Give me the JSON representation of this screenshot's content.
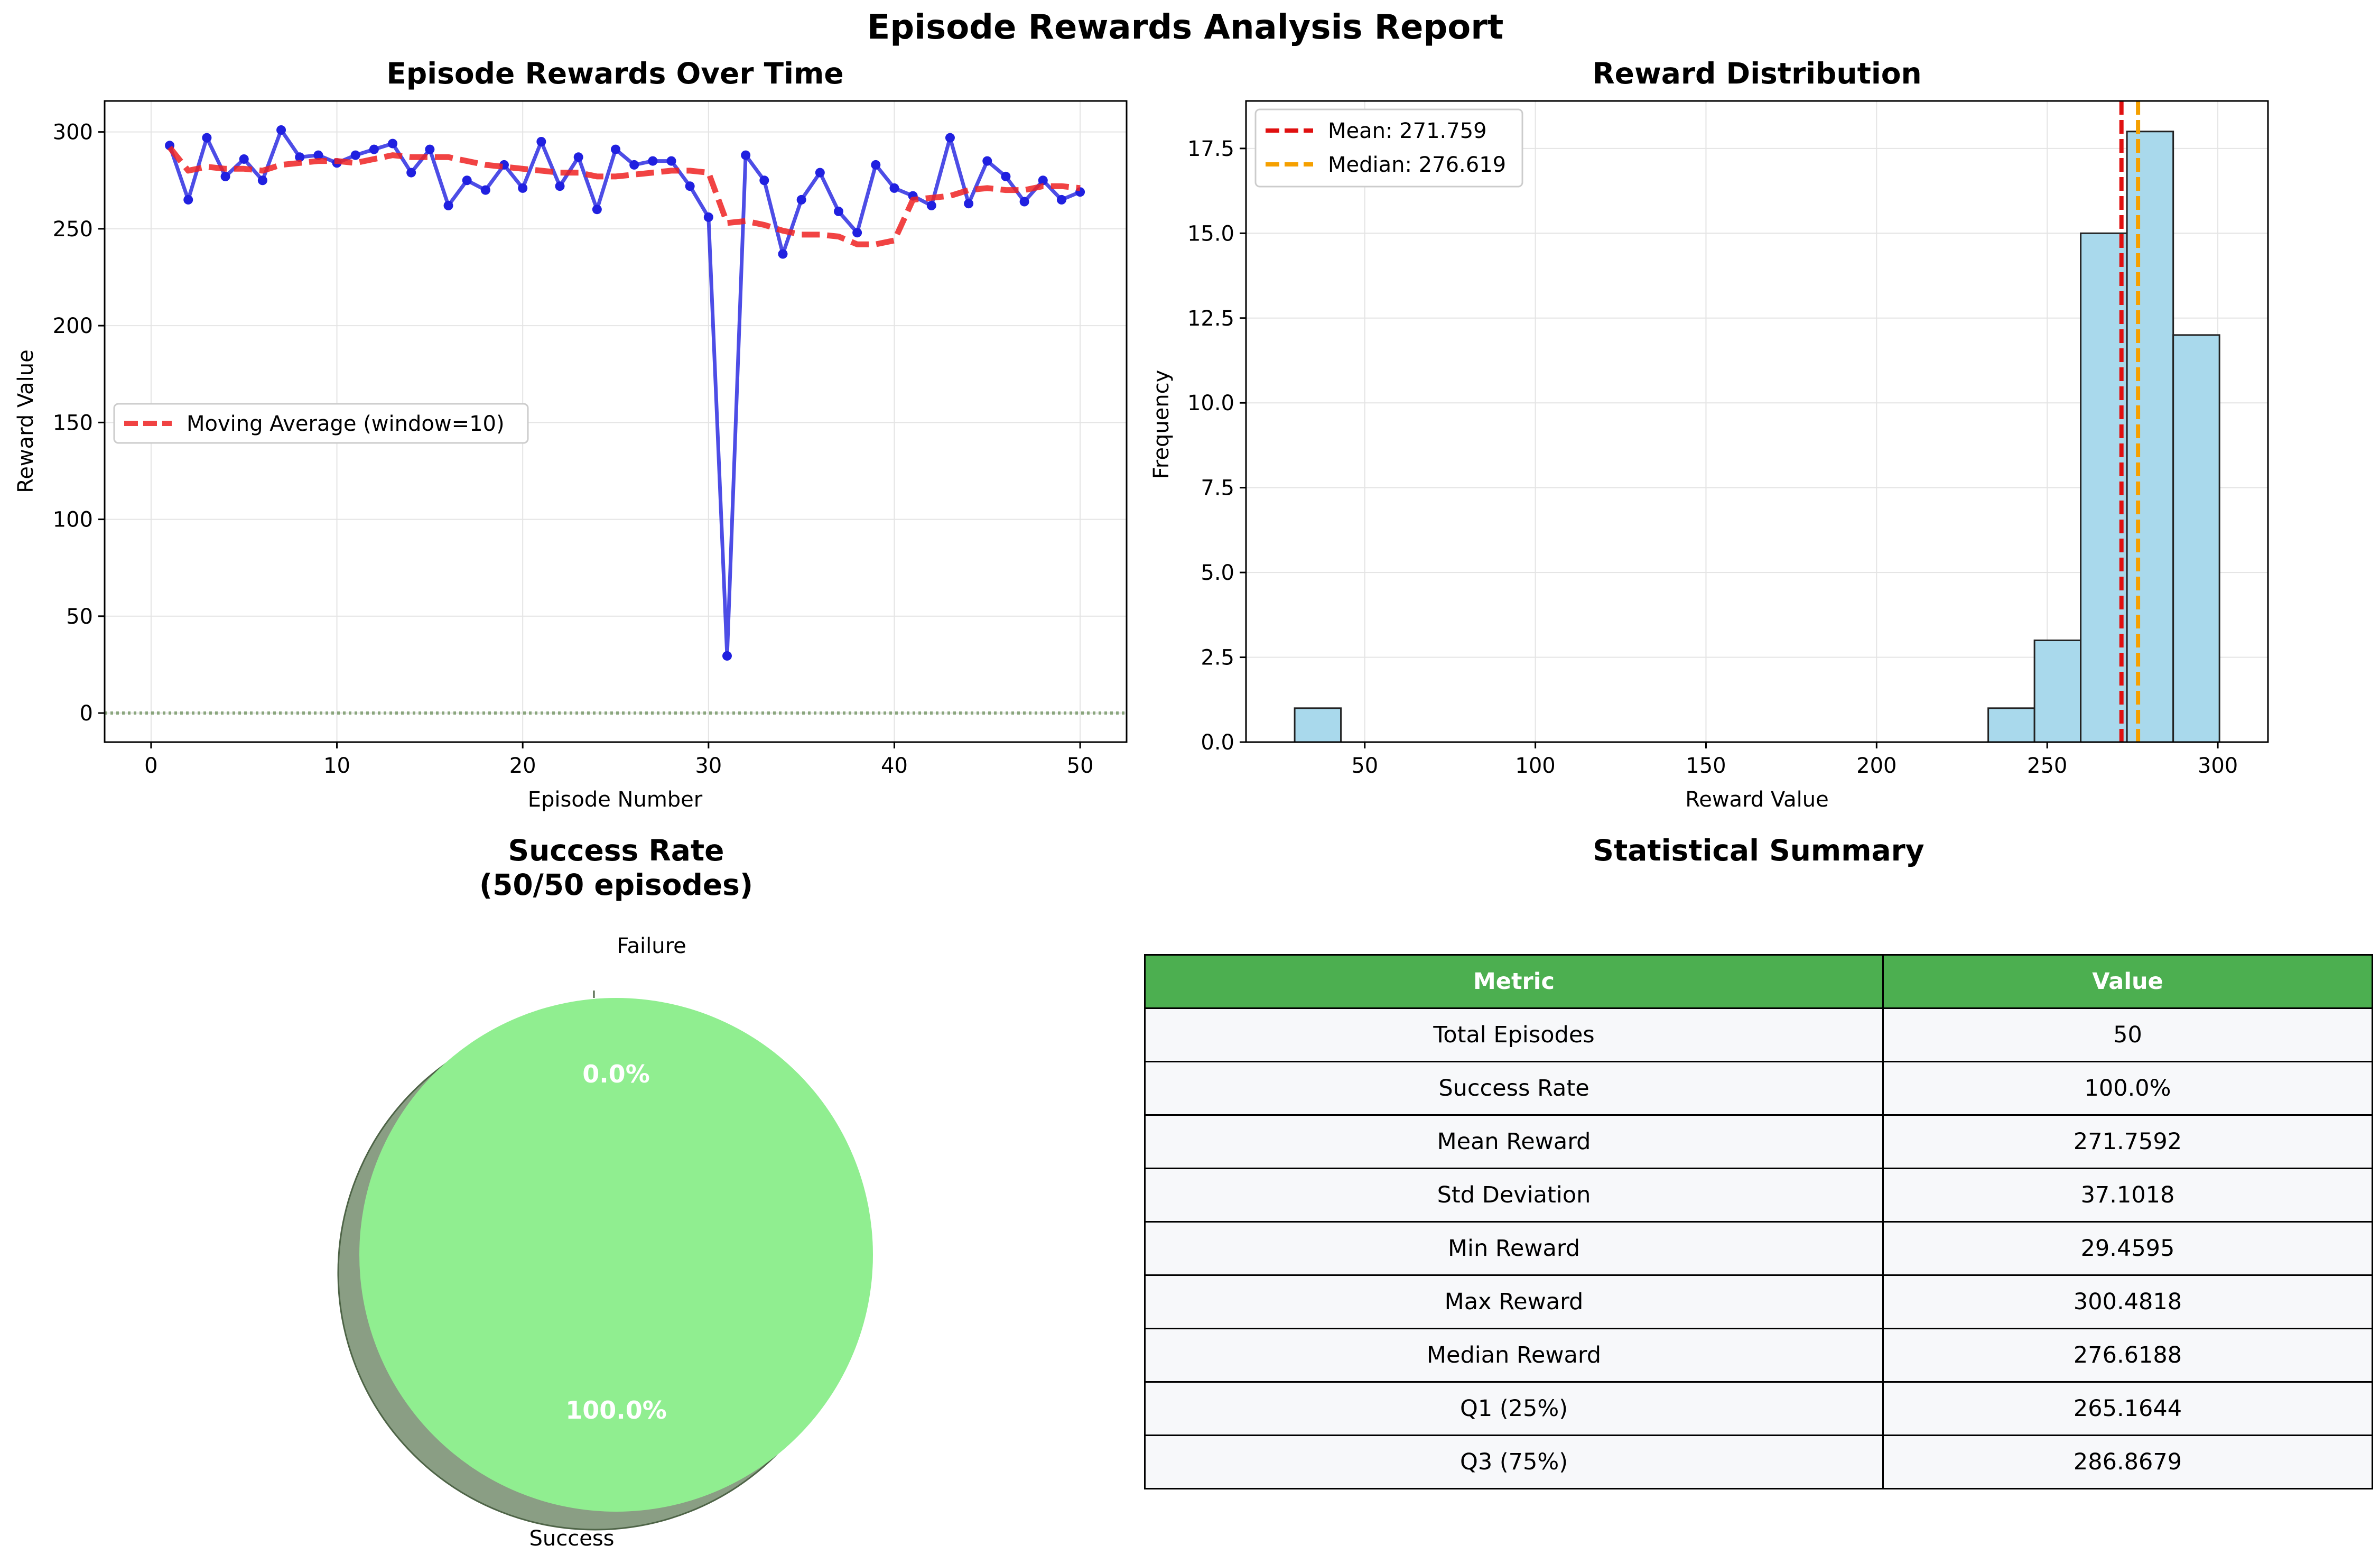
{
  "suptitle": "Episode Rewards Analysis Report",
  "chart_data": [
    {
      "type": "line",
      "title": "Episode Rewards Over Time",
      "xlabel": "Episode Number",
      "ylabel": "Reward Value",
      "xlim": [
        -2.5,
        52.5
      ],
      "ylim": [
        -15,
        316
      ],
      "xticks": [
        0,
        10,
        20,
        30,
        40,
        50
      ],
      "yticks": [
        0,
        50,
        100,
        150,
        200,
        250,
        300
      ],
      "grid": true,
      "legend": "center-left",
      "x": [
        1,
        2,
        3,
        4,
        5,
        6,
        7,
        8,
        9,
        10,
        11,
        12,
        13,
        14,
        15,
        16,
        17,
        18,
        19,
        20,
        21,
        22,
        23,
        24,
        25,
        26,
        27,
        28,
        29,
        30,
        31,
        32,
        33,
        34,
        35,
        36,
        37,
        38,
        39,
        40,
        41,
        42,
        43,
        44,
        45,
        46,
        47,
        48,
        49,
        50
      ],
      "series": [
        {
          "name": "",
          "color": "#2020e0",
          "values": [
            293,
            265,
            297,
            277,
            286,
            275,
            301,
            287,
            288,
            284,
            288,
            291,
            294,
            279,
            291,
            262,
            275,
            270,
            283,
            271,
            295,
            272,
            287,
            260,
            291,
            283,
            285,
            285,
            272,
            256,
            29.5,
            288,
            275,
            237,
            265,
            279,
            259,
            248,
            283,
            271,
            267,
            262,
            297,
            263,
            285,
            277,
            264,
            275,
            265,
            269
          ]
        },
        {
          "name": "Moving Average (window=10)",
          "color": "#ee2222",
          "start": 1,
          "values": [
            292,
            280,
            282,
            281,
            281,
            280,
            283,
            284,
            285,
            285,
            284,
            286,
            288,
            287,
            287,
            287,
            285,
            283,
            282,
            281,
            280,
            279,
            279,
            277,
            277,
            278,
            279,
            280,
            280,
            279,
            253,
            254,
            252,
            249,
            247,
            247,
            246,
            242,
            242,
            244,
            265,
            266,
            267,
            270,
            271,
            270,
            270,
            272,
            272,
            271
          ]
        }
      ],
      "reference_line": {
        "y": 0,
        "color": "#7a9a6a",
        "style": "dotted"
      }
    },
    {
      "type": "bar",
      "title": "Reward Distribution",
      "xlabel": "Reward Value",
      "ylabel": "Frequency",
      "xlim": [
        15.2,
        314.7
      ],
      "ylim": [
        0,
        18.9
      ],
      "xticks": [
        50,
        100,
        150,
        200,
        250,
        300
      ],
      "yticks": [
        0.0,
        2.5,
        5.0,
        7.5,
        10.0,
        12.5,
        15.0,
        17.5
      ],
      "grid": true,
      "legend": "top-left",
      "bin_edges": [
        29.46,
        43.01,
        56.56,
        70.11,
        83.66,
        97.21,
        110.76,
        124.31,
        137.86,
        151.41,
        164.97,
        178.52,
        192.07,
        205.62,
        219.17,
        232.72,
        246.27,
        259.82,
        273.37,
        286.93,
        300.48
      ],
      "counts": [
        1,
        0,
        0,
        0,
        0,
        0,
        0,
        0,
        0,
        0,
        0,
        0,
        0,
        0,
        0,
        1,
        3,
        15,
        18,
        12
      ],
      "bar_color": "#a9d9ec",
      "vlines": [
        {
          "label": "Mean: 271.759",
          "x": 271.759,
          "color": "#e01010"
        },
        {
          "label": "Median: 276.619",
          "x": 276.619,
          "color": "#f5a000"
        }
      ]
    },
    {
      "type": "pie",
      "title": "Success Rate",
      "subtitle": "(50/50 episodes)",
      "slices": [
        {
          "label": "Success",
          "value": 100.0,
          "pct": "100.0%",
          "color": "#90ee90"
        },
        {
          "label": "Failure",
          "value": 0.0,
          "pct": "0.0%",
          "color": "#e88080"
        }
      ],
      "shadow": true
    },
    {
      "type": "table",
      "title": "Statistical Summary",
      "columns": [
        "Metric",
        "Value"
      ],
      "rows": [
        [
          "Total Episodes",
          "50"
        ],
        [
          "Success Rate",
          "100.0%"
        ],
        [
          "Mean Reward",
          "271.7592"
        ],
        [
          "Std Deviation",
          "37.1018"
        ],
        [
          "Min Reward",
          "29.4595"
        ],
        [
          "Max Reward",
          "300.4818"
        ],
        [
          "Median Reward",
          "276.6188"
        ],
        [
          "Q1 (25%)",
          "265.1644"
        ],
        [
          "Q3 (75%)",
          "286.8679"
        ]
      ],
      "header_color": "#4caf50",
      "cell_color": "#f7f8fa"
    }
  ]
}
